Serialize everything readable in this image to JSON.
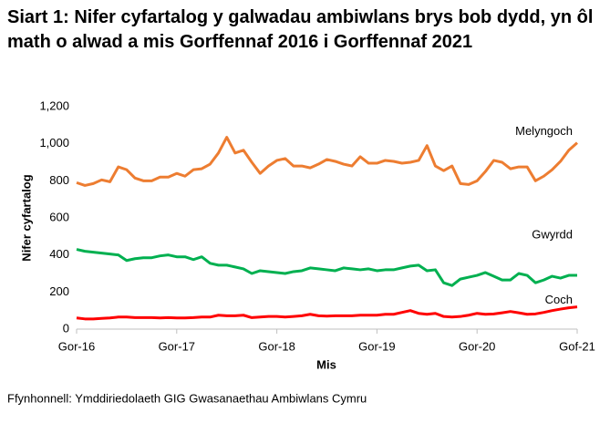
{
  "chart_data": {
    "type": "line",
    "title": "Siart 1: Nifer cyfartalog y galwadau ambiwlans brys bob dydd, yn ôl math o alwad a mis Gorffennaf 2016 i Gorffennaf 2021",
    "y_label": "Nifer cyfartalog",
    "x_label": "Mis",
    "source": "Ffynhonnell: Ymddiriedolaeth GIG Gwasanaethau Ambiwlans Cymru",
    "categories": [
      "Gor-16",
      null,
      null,
      null,
      null,
      null,
      null,
      null,
      null,
      null,
      null,
      null,
      "Gor-17",
      null,
      null,
      null,
      null,
      null,
      null,
      null,
      null,
      null,
      null,
      null,
      "Gor-18",
      null,
      null,
      null,
      null,
      null,
      null,
      null,
      null,
      null,
      null,
      null,
      "Gor-19",
      null,
      null,
      null,
      null,
      null,
      null,
      null,
      null,
      null,
      null,
      null,
      "Gor-20",
      null,
      null,
      null,
      null,
      null,
      null,
      null,
      null,
      null,
      null,
      null,
      "Gof-21"
    ],
    "series": [
      {
        "name": "Melyngoch",
        "color": "#ed7d31",
        "values": [
          790,
          775,
          785,
          805,
          795,
          875,
          860,
          815,
          800,
          800,
          820,
          820,
          840,
          825,
          860,
          865,
          890,
          950,
          1035,
          950,
          965,
          900,
          840,
          880,
          910,
          920,
          880,
          880,
          870,
          890,
          915,
          905,
          890,
          880,
          930,
          895,
          895,
          910,
          905,
          895,
          900,
          910,
          990,
          880,
          855,
          880,
          785,
          780,
          800,
          850,
          910,
          900,
          865,
          875,
          875,
          800,
          825,
          860,
          905,
          965,
          1005
        ]
      },
      {
        "name": "Gwyrdd",
        "color": "#00b050",
        "values": [
          430,
          420,
          415,
          410,
          405,
          400,
          370,
          380,
          385,
          385,
          395,
          400,
          390,
          390,
          375,
          390,
          355,
          345,
          345,
          335,
          325,
          300,
          315,
          310,
          305,
          300,
          310,
          315,
          330,
          325,
          320,
          315,
          330,
          325,
          320,
          325,
          315,
          320,
          320,
          330,
          340,
          345,
          315,
          320,
          250,
          235,
          270,
          280,
          290,
          305,
          285,
          265,
          265,
          300,
          290,
          250,
          265,
          285,
          275,
          290,
          290
        ]
      },
      {
        "name": "Coch",
        "color": "#ff0000",
        "values": [
          60,
          55,
          55,
          58,
          60,
          65,
          65,
          62,
          62,
          62,
          60,
          62,
          60,
          60,
          62,
          65,
          65,
          75,
          72,
          72,
          75,
          62,
          65,
          68,
          68,
          65,
          68,
          72,
          80,
          72,
          70,
          72,
          72,
          72,
          75,
          75,
          75,
          80,
          80,
          90,
          100,
          85,
          80,
          85,
          68,
          65,
          68,
          75,
          85,
          80,
          82,
          88,
          95,
          88,
          80,
          82,
          90,
          100,
          108,
          115,
          120
        ]
      }
    ],
    "ylim": [
      0,
      1200
    ],
    "yticks": [
      0,
      200,
      400,
      600,
      800,
      {
        "value": 1000,
        "label": "1,000"
      },
      {
        "value": 1200,
        "label": "1,200"
      }
    ]
  }
}
